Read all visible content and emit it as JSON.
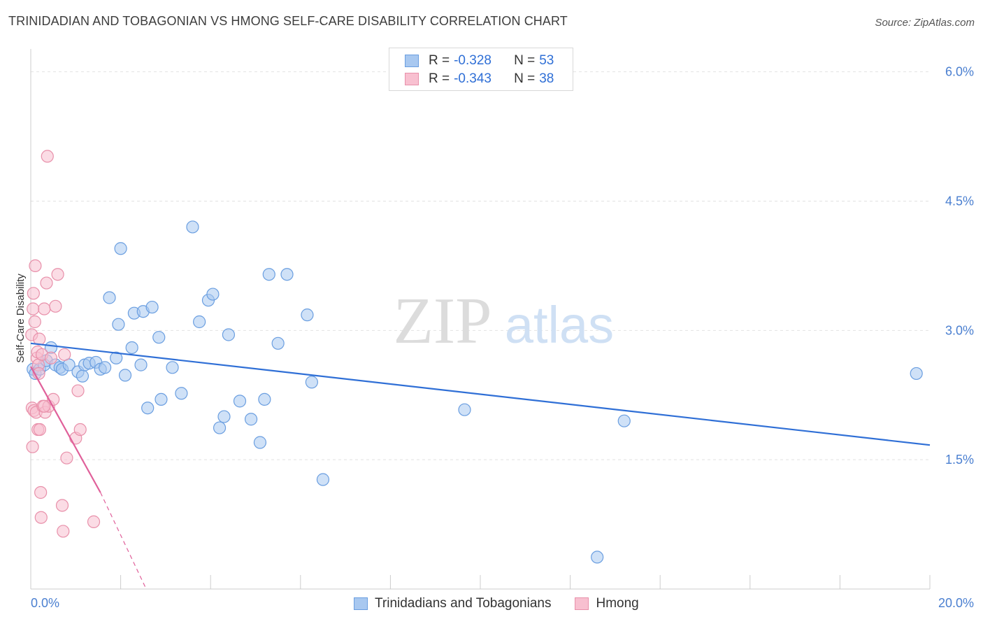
{
  "title": "TRINIDADIAN AND TOBAGONIAN VS HMONG SELF-CARE DISABILITY CORRELATION CHART",
  "source": "Source: ZipAtlas.com",
  "watermark": {
    "zip": "ZIP",
    "atlas": "atlas"
  },
  "legend": {
    "rows": [
      {
        "r_label": "R =",
        "r_value": "-0.328",
        "n_label": "N =",
        "n_value": "53",
        "color": "#a8c8f0",
        "border": "#6a9ee0"
      },
      {
        "r_label": "R =",
        "r_value": "-0.343",
        "n_label": "N =",
        "n_value": "38",
        "color": "#f8c0d0",
        "border": "#e890aa"
      }
    ]
  },
  "chart_data": {
    "type": "scatter",
    "title": "TRINIDADIAN AND TOBAGONIAN VS HMONG SELF-CARE DISABILITY CORRELATION CHART",
    "ylabel": "Self-Care Disability",
    "xlim": [
      0,
      20
    ],
    "ylim": [
      0,
      6.2
    ],
    "x_tick_labels": [
      "0.0%",
      "20.0%"
    ],
    "y_ticks": [
      1.5,
      3.0,
      4.5,
      6.0
    ],
    "y_tick_labels": [
      "1.5%",
      "3.0%",
      "4.5%",
      "6.0%"
    ],
    "grid": true,
    "legend_position": "top-center",
    "series": [
      {
        "name": "Trinidadians and Tobagonians",
        "color": "#a8c8f0",
        "stroke": "#6a9ee0",
        "trend_color": "#2f6fd6",
        "trend": {
          "x0": 0.0,
          "y0": 2.85,
          "x1": 20.0,
          "y1": 1.67
        },
        "points": [
          [
            0.05,
            2.55
          ],
          [
            0.1,
            2.5
          ],
          [
            0.2,
            2.55
          ],
          [
            0.3,
            2.6
          ],
          [
            0.35,
            2.65
          ],
          [
            0.45,
            2.8
          ],
          [
            0.55,
            2.6
          ],
          [
            0.65,
            2.57
          ],
          [
            0.7,
            2.55
          ],
          [
            0.85,
            2.6
          ],
          [
            1.05,
            2.52
          ],
          [
            1.15,
            2.47
          ],
          [
            1.2,
            2.6
          ],
          [
            1.3,
            2.62
          ],
          [
            1.45,
            2.63
          ],
          [
            1.55,
            2.55
          ],
          [
            1.65,
            2.57
          ],
          [
            1.75,
            3.38
          ],
          [
            1.9,
            2.68
          ],
          [
            1.95,
            3.07
          ],
          [
            2.0,
            3.95
          ],
          [
            2.1,
            2.48
          ],
          [
            2.25,
            2.8
          ],
          [
            2.3,
            3.2
          ],
          [
            2.45,
            2.6
          ],
          [
            2.5,
            3.22
          ],
          [
            2.6,
            2.1
          ],
          [
            2.7,
            3.27
          ],
          [
            2.85,
            2.92
          ],
          [
            2.9,
            2.2
          ],
          [
            3.15,
            2.57
          ],
          [
            3.35,
            2.27
          ],
          [
            3.6,
            4.2
          ],
          [
            3.75,
            3.1
          ],
          [
            3.95,
            3.35
          ],
          [
            4.05,
            3.42
          ],
          [
            4.2,
            1.87
          ],
          [
            4.3,
            2.0
          ],
          [
            4.4,
            2.95
          ],
          [
            4.65,
            2.18
          ],
          [
            4.9,
            1.97
          ],
          [
            5.1,
            1.7
          ],
          [
            5.2,
            2.2
          ],
          [
            5.3,
            3.65
          ],
          [
            5.5,
            2.85
          ],
          [
            5.7,
            3.65
          ],
          [
            6.15,
            3.18
          ],
          [
            6.25,
            2.4
          ],
          [
            6.5,
            1.27
          ],
          [
            9.65,
            2.08
          ],
          [
            12.6,
            0.37
          ],
          [
            13.2,
            1.95
          ],
          [
            19.7,
            2.5
          ]
        ]
      },
      {
        "name": "Hmong",
        "color": "#f8c0d0",
        "stroke": "#e890aa",
        "trend_color": "#e0609a",
        "trend": {
          "x0": 0.0,
          "y0": 2.58,
          "x1": 1.55,
          "y1": 1.12
        },
        "trend_dash": {
          "x0": 1.55,
          "y0": 1.12,
          "x1": 2.55,
          "y1": 0.02
        },
        "points": [
          [
            0.02,
            2.95
          ],
          [
            0.03,
            2.1
          ],
          [
            0.04,
            1.65
          ],
          [
            0.05,
            3.25
          ],
          [
            0.06,
            3.43
          ],
          [
            0.07,
            2.07
          ],
          [
            0.09,
            3.1
          ],
          [
            0.1,
            3.75
          ],
          [
            0.12,
            2.05
          ],
          [
            0.14,
            2.68
          ],
          [
            0.15,
            2.75
          ],
          [
            0.16,
            1.85
          ],
          [
            0.17,
            2.6
          ],
          [
            0.18,
            2.5
          ],
          [
            0.19,
            2.9
          ],
          [
            0.2,
            1.85
          ],
          [
            0.22,
            1.12
          ],
          [
            0.23,
            0.83
          ],
          [
            0.25,
            2.72
          ],
          [
            0.27,
            2.12
          ],
          [
            0.3,
            3.25
          ],
          [
            0.32,
            2.05
          ],
          [
            0.35,
            3.55
          ],
          [
            0.37,
            5.02
          ],
          [
            0.4,
            2.12
          ],
          [
            0.45,
            2.68
          ],
          [
            0.5,
            2.2
          ],
          [
            0.55,
            3.28
          ],
          [
            0.6,
            3.65
          ],
          [
            0.7,
            0.97
          ],
          [
            0.72,
            0.67
          ],
          [
            0.75,
            2.72
          ],
          [
            0.8,
            1.52
          ],
          [
            1.0,
            1.75
          ],
          [
            1.05,
            2.3
          ],
          [
            1.1,
            1.85
          ],
          [
            1.4,
            0.78
          ],
          [
            0.3,
            2.12
          ]
        ]
      }
    ]
  },
  "bottom_legend": [
    "Trinidadians and Tobagonians",
    "Hmong"
  ]
}
